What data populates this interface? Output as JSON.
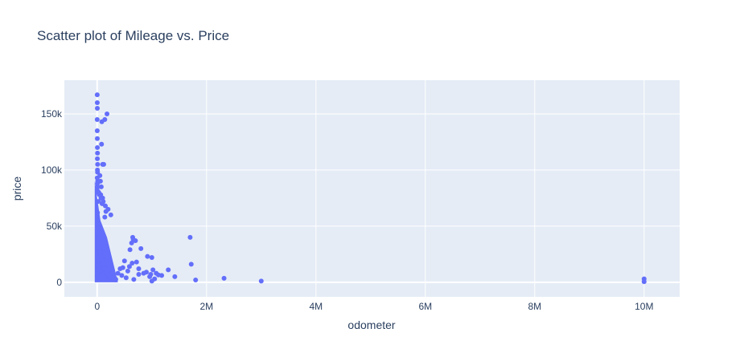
{
  "chart_data": {
    "type": "scatter",
    "title": "Scatter plot of Mileage vs. Price",
    "xlabel": "odometer",
    "ylabel": "price",
    "xlim": [
      -600000,
      10650000
    ],
    "ylim": [
      -13000,
      180000
    ],
    "x_ticks": [
      {
        "value": 0,
        "label": "0"
      },
      {
        "value": 2000000,
        "label": "2M"
      },
      {
        "value": 4000000,
        "label": "4M"
      },
      {
        "value": 6000000,
        "label": "6M"
      },
      {
        "value": 8000000,
        "label": "8M"
      },
      {
        "value": 10000000,
        "label": "10M"
      }
    ],
    "y_ticks": [
      {
        "value": 0,
        "label": "0"
      },
      {
        "value": 50000,
        "label": "50k"
      },
      {
        "value": 100000,
        "label": "100k"
      },
      {
        "value": 150000,
        "label": "150k"
      }
    ],
    "grid": true,
    "marker_color": "#636efa",
    "plot_bg": "#e5ecf6",
    "series": [
      {
        "x": [
          10000,
          15000,
          20000,
          12000,
          18000,
          30000,
          5000,
          25000,
          40000,
          60000,
          8000,
          35000,
          50000,
          70000,
          22000,
          45000,
          90000,
          28000,
          55000,
          65000,
          120000,
          32000,
          80000,
          150000,
          200000,
          100000,
          15000,
          140000,
          85000,
          48000,
          175000,
          62000,
          110000,
          220000,
          95000,
          38000,
          180000,
          135000,
          260000,
          75000,
          160000,
          105000,
          240000,
          190000,
          300000,
          130000,
          58000,
          210000,
          115000,
          280000,
          42000,
          170000,
          250000,
          88000,
          145000,
          230000,
          68000,
          195000,
          125000,
          270000,
          310000,
          155000,
          52000,
          205000,
          98000,
          185000,
          235000,
          78000,
          165000,
          290000,
          330000,
          138000,
          215000,
          72000,
          248000,
          108000,
          178000,
          258000,
          92000,
          142000,
          198000,
          320000,
          118000,
          228000,
          36000,
          168000,
          278000,
          62000,
          188000,
          340000,
          12000,
          24000,
          6000,
          34000,
          46000,
          14000,
          26000,
          56000,
          18000,
          42000
        ],
        "y": [
          5000,
          8000,
          12000,
          15000,
          10000,
          20000,
          3000,
          25000,
          18000,
          9000,
          30000,
          22000,
          16000,
          11000,
          35000,
          28000,
          7000,
          40000,
          19000,
          14000,
          6000,
          45000,
          13000,
          8500,
          5500,
          17000,
          50000,
          9500,
          21000,
          26000,
          7500,
          24000,
          12500,
          4500,
          15500,
          32000,
          8200,
          11500,
          3500,
          18500,
          10500,
          14500,
          4000,
          6500,
          2800,
          12800,
          27000,
          7200,
          16500,
          3200,
          38000,
          9200,
          5200,
          20500,
          13500,
          6200,
          23000,
          8800,
          15200,
          4200,
          2500,
          11200,
          29000,
          7800,
          17500,
          9800,
          5800,
          21500,
          10200,
          3800,
          2200,
          14200,
          6800,
          24500,
          5400,
          16200,
          9400,
          4800,
          19200,
          12200,
          8100,
          3100,
          15800,
          6100,
          33000,
          10800,
          4100,
          26500,
          8600,
          2600,
          55000,
          42000,
          62000,
          36000,
          31000,
          48000,
          39000,
          27500,
          52000,
          34000
        ]
      },
      {
        "x": [
          1000,
          2000,
          3000,
          500,
          1500,
          2500,
          4000,
          6000,
          3500,
          8000,
          5000,
          7000,
          1200,
          9000,
          4500,
          6500,
          2200,
          10000,
          50000,
          60000,
          65000,
          70000,
          80000,
          85000,
          100000,
          120000,
          140000,
          150000,
          180000,
          200000,
          250000,
          140000,
          90000,
          160000,
          100000,
          110000,
          75000,
          40000,
          30000,
          20000
        ],
        "y": [
          167000,
          160000,
          155000,
          145000,
          135000,
          128000,
          120000,
          115000,
          110000,
          105000,
          100000,
          98000,
          93000,
          90000,
          88000,
          85000,
          82000,
          80000,
          95000,
          90000,
          78000,
          75000,
          123000,
          143000,
          105000,
          105000,
          145000,
          68000,
          150000,
          65000,
          60000,
          58000,
          70000,
          63000,
          75000,
          72000,
          85000,
          78000,
          80000,
          72000
        ]
      },
      {
        "x": [
          380000,
          420000,
          500000,
          560000,
          600000,
          630000,
          650000,
          700000,
          720000,
          760000,
          800000,
          850000,
          920000,
          960000,
          1000000,
          1020000,
          1050000,
          1080000,
          1120000,
          1180000,
          1300000,
          1420000,
          1700000,
          1720000,
          1800000,
          2320000,
          3000000,
          10000000,
          10000000,
          660000,
          640000,
          470000,
          900000,
          1000000,
          980000,
          590000,
          760000,
          450000,
          530000,
          670000
        ],
        "y": [
          8000,
          12000,
          19000,
          10000,
          29000,
          35000,
          40000,
          37000,
          18000,
          12000,
          30000,
          8000,
          23000,
          5000,
          22000,
          11000,
          3000,
          8000,
          6500,
          6000,
          11000,
          5000,
          40000,
          16000,
          2000,
          3500,
          1000,
          3000,
          500,
          38000,
          17000,
          13000,
          9000,
          1000,
          7000,
          14000,
          7000,
          6000,
          4000,
          2500
        ]
      }
    ]
  }
}
